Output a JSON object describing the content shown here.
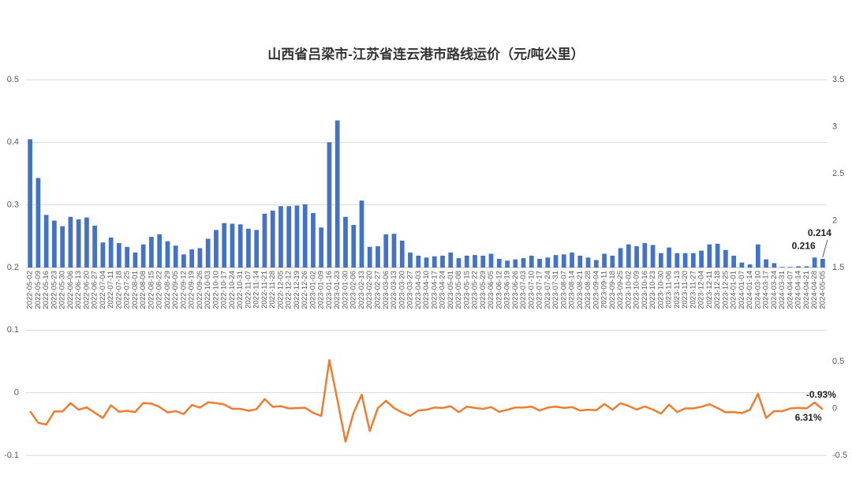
{
  "chart_data": {
    "type": "bar",
    "title": "山西省吕梁市-江苏省连云港市路线运价（元/吨公里）",
    "categories": [
      "2022-05-02",
      "2022-05-09",
      "2022-05-16",
      "2022-05-23",
      "2022-05-30",
      "2022-06-06",
      "2022-06-13",
      "2022-06-20",
      "2022-06-27",
      "2022-07-04",
      "2022-07-11",
      "2022-07-18",
      "2022-07-25",
      "2022-08-01",
      "2022-08-08",
      "2022-08-15",
      "2022-08-22",
      "2022-08-29",
      "2022-09-05",
      "2022-09-12",
      "2022-09-19",
      "2022-09-26",
      "2022-10-03",
      "2022-10-10",
      "2022-10-17",
      "2022-10-24",
      "2022-10-31",
      "2022-11-07",
      "2022-11-14",
      "2022-11-21",
      "2022-11-28",
      "2022-12-05",
      "2022-12-12",
      "2022-12-19",
      "2022-12-26",
      "2023-01-02",
      "2023-01-09",
      "2023-01-16",
      "2023-01-23",
      "2023-01-30",
      "2023-02-06",
      "2023-02-13",
      "2023-02-20",
      "2023-02-27",
      "2023-03-06",
      "2023-03-13",
      "2023-03-20",
      "2023-03-27",
      "2023-04-03",
      "2023-04-10",
      "2023-04-17",
      "2023-04-24",
      "2023-05-01",
      "2023-05-08",
      "2023-05-15",
      "2023-05-22",
      "2023-05-29",
      "2023-06-05",
      "2023-06-12",
      "2023-06-19",
      "2023-06-26",
      "2023-07-03",
      "2023-07-10",
      "2023-07-17",
      "2023-07-24",
      "2023-07-31",
      "2023-08-07",
      "2023-08-14",
      "2023-08-21",
      "2023-08-28",
      "2023-09-04",
      "2023-09-11",
      "2023-09-18",
      "2023-09-25",
      "2023-10-02",
      "2023-10-09",
      "2023-10-16",
      "2023-10-23",
      "2023-10-30",
      "2023-11-06",
      "2023-11-13",
      "2023-11-20",
      "2023-11-27",
      "2023-12-04",
      "2023-12-11",
      "2023-12-18",
      "2023-12-25",
      "2024-01-01",
      "2024-01-07",
      "2024-01-14",
      "2024-03-10",
      "2024-03-17",
      "2024-03-24",
      "2024-03-31",
      "2024-04-07",
      "2024-04-14",
      "2024-04-21",
      "2024-04-28",
      "2024-05-05"
    ],
    "series": [
      {
        "type": "bar",
        "color": "#4472c4",
        "values": [
          0.405,
          0.343,
          0.284,
          0.275,
          0.266,
          0.281,
          0.277,
          0.28,
          0.267,
          0.24,
          0.248,
          0.239,
          0.233,
          0.224,
          0.237,
          0.249,
          0.253,
          0.242,
          0.235,
          0.221,
          0.229,
          0.231,
          0.246,
          0.26,
          0.271,
          0.27,
          0.269,
          0.262,
          0.26,
          0.286,
          0.291,
          0.298,
          0.298,
          0.299,
          0.301,
          0.287,
          0.264,
          0.4,
          0.435,
          0.281,
          0.268,
          0.307,
          0.233,
          0.234,
          0.253,
          0.254,
          0.243,
          0.224,
          0.219,
          0.216,
          0.218,
          0.219,
          0.224,
          0.215,
          0.219,
          0.22,
          0.219,
          0.222,
          0.214,
          0.211,
          0.213,
          0.215,
          0.219,
          0.214,
          0.216,
          0.22,
          0.221,
          0.224,
          0.219,
          0.216,
          0.212,
          0.222,
          0.219,
          0.231,
          0.237,
          0.234,
          0.239,
          0.236,
          0.223,
          0.232,
          0.223,
          0.223,
          0.223,
          0.227,
          0.237,
          0.238,
          0.228,
          0.219,
          0.208,
          0.205,
          0.237,
          0.213,
          0.207,
          0.201,
          0.201,
          0.202,
          0.202,
          0.216,
          0.214
        ],
        "value_labels": [
          null,
          null,
          null,
          null,
          null,
          null,
          null,
          null,
          null,
          null,
          null,
          null,
          null,
          null,
          null,
          null,
          null,
          null,
          null,
          null,
          null,
          null,
          null,
          null,
          null,
          null,
          null,
          null,
          null,
          null,
          null,
          null,
          null,
          null,
          null,
          null,
          null,
          null,
          null,
          null,
          null,
          null,
          null,
          null,
          null,
          null,
          null,
          null,
          null,
          null,
          null,
          null,
          null,
          null,
          null,
          null,
          null,
          null,
          null,
          null,
          null,
          null,
          null,
          null,
          null,
          null,
          null,
          null,
          null,
          null,
          null,
          null,
          null,
          null,
          null,
          null,
          null,
          null,
          null,
          null,
          null,
          null,
          null,
          null,
          null,
          null,
          null,
          null,
          null,
          null,
          null,
          null,
          null,
          null,
          null,
          null,
          null,
          "0.216",
          "0.214"
        ]
      },
      {
        "type": "line",
        "axis": "y2",
        "color": "#ed7d31",
        "values": [
          -0.03,
          -0.153,
          -0.172,
          -0.032,
          -0.033,
          0.056,
          -0.014,
          0.011,
          -0.046,
          -0.101,
          0.033,
          -0.036,
          -0.025,
          -0.039,
          0.058,
          0.051,
          0.016,
          -0.043,
          -0.029,
          -0.06,
          0.036,
          0.009,
          0.065,
          0.057,
          0.042,
          -0.004,
          -0.004,
          -0.026,
          -0.008,
          0.1,
          0.017,
          0.024,
          0,
          0.003,
          0.007,
          -0.047,
          -0.08,
          0.515,
          0.088,
          -0.354,
          -0.046,
          0.146,
          -0.241,
          0.004,
          0.081,
          0.004,
          -0.043,
          -0.078,
          -0.022,
          -0.014,
          0.009,
          0.005,
          0.023,
          -0.04,
          0.019,
          0.005,
          -0.005,
          0.014,
          -0.036,
          -0.014,
          0.009,
          0.009,
          0.019,
          -0.023,
          0.009,
          0.019,
          0.005,
          0.014,
          -0.022,
          -0.014,
          -0.019,
          0.047,
          -0.014,
          0.055,
          0.026,
          -0.013,
          0.021,
          -0.013,
          -0.055,
          0.04,
          -0.039,
          0,
          0,
          0.018,
          0.044,
          0.004,
          -0.042,
          -0.039,
          -0.05,
          -0.014,
          0.156,
          -0.101,
          -0.028,
          -0.029,
          0,
          0.005,
          0,
          0.0631,
          -0.0093
        ],
        "value_labels": [
          null,
          null,
          null,
          null,
          null,
          null,
          null,
          null,
          null,
          null,
          null,
          null,
          null,
          null,
          null,
          null,
          null,
          null,
          null,
          null,
          null,
          null,
          null,
          null,
          null,
          null,
          null,
          null,
          null,
          null,
          null,
          null,
          null,
          null,
          null,
          null,
          null,
          null,
          null,
          null,
          null,
          null,
          null,
          null,
          null,
          null,
          null,
          null,
          null,
          null,
          null,
          null,
          null,
          null,
          null,
          null,
          null,
          null,
          null,
          null,
          null,
          null,
          null,
          null,
          null,
          null,
          null,
          null,
          null,
          null,
          null,
          null,
          null,
          null,
          null,
          null,
          null,
          null,
          null,
          null,
          null,
          null,
          null,
          null,
          null,
          null,
          null,
          null,
          null,
          null,
          null,
          null,
          null,
          null,
          null,
          null,
          null,
          "6.31%",
          "-0.93%"
        ]
      }
    ],
    "ylim": [
      -0.1,
      0.5
    ],
    "yticks": [
      -0.1,
      0,
      0.1,
      0.2,
      0.3,
      0.4,
      0.5
    ],
    "y2lim": [
      -0.5,
      3.5
    ],
    "y2ticks": [
      -0.5,
      0,
      0.5,
      1.5,
      2,
      2.5,
      3,
      3.5
    ],
    "x_axis_at": 0.2,
    "grid": true
  }
}
